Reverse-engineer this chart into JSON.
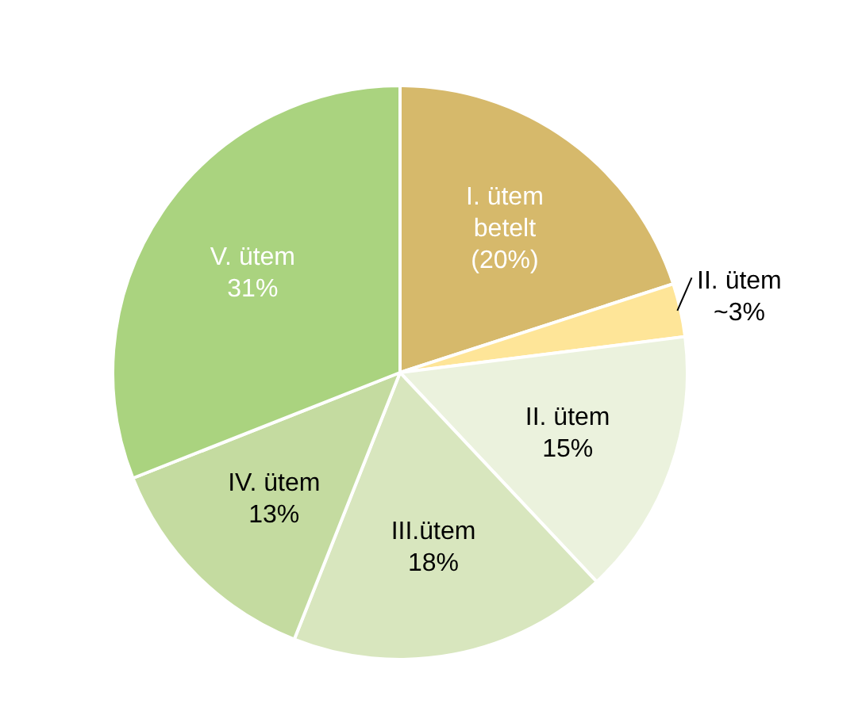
{
  "chart_data": {
    "type": "pie",
    "categories": [
      "I. ütem betelt",
      "II. ütem",
      "II. ütem",
      "III.ütem",
      "IV. ütem",
      "V. ütem"
    ],
    "values": [
      20,
      3,
      15,
      18,
      13,
      31
    ],
    "value_labels": [
      "(20%)",
      "~3%",
      "15%",
      "18%",
      "13%",
      "31%"
    ],
    "colors": [
      "#d6b96b",
      "#fee598",
      "#ebf2dd",
      "#d8e6be",
      "#c4dba0",
      "#aad37f"
    ],
    "legend": false
  }
}
